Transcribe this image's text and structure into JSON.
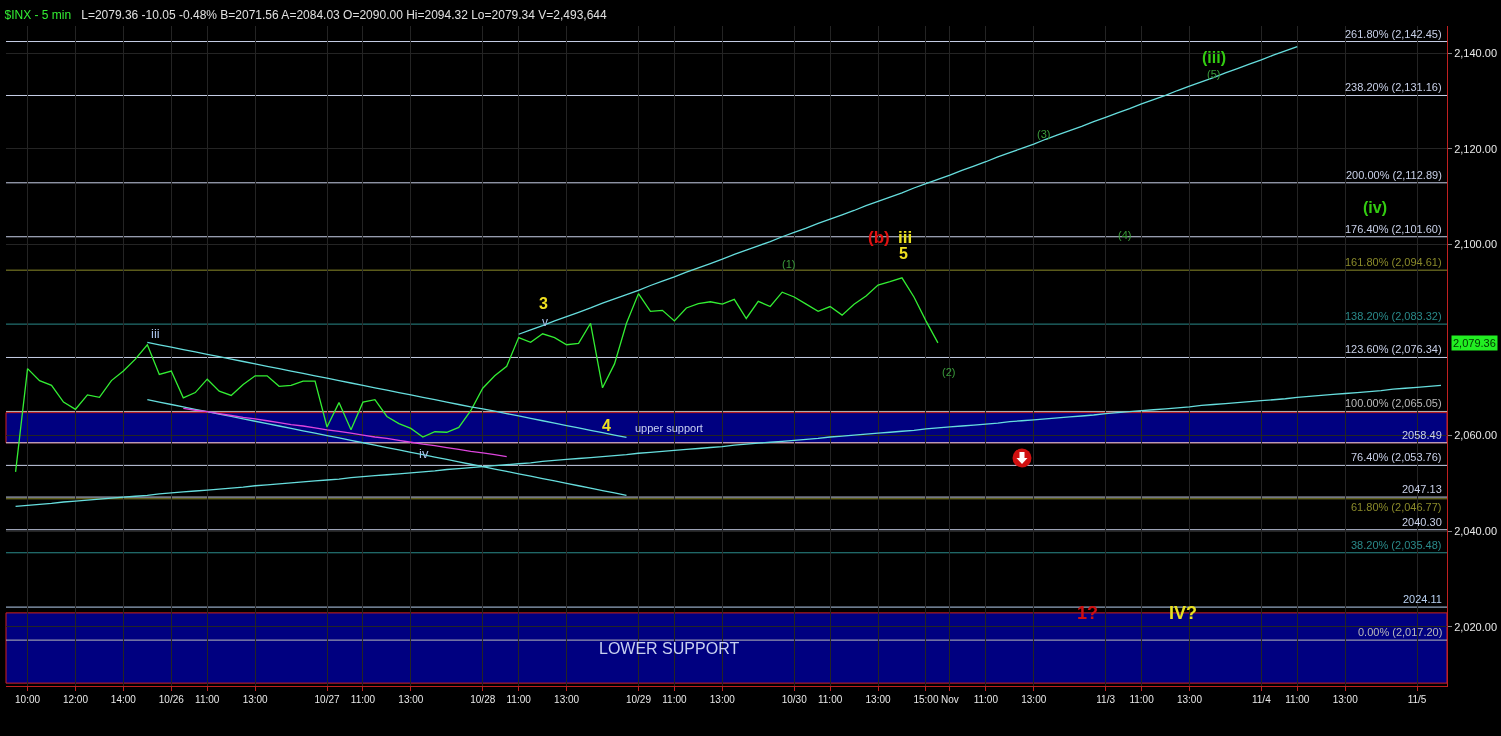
{
  "chart_data": {
    "type": "line",
    "title": "$INX - 5 min",
    "subtitle": "L=2079.36 -10.05 -0.48% B=2071.56 A=2084.03 O=2090.00 Hi=2094.32 Lo=2079.34 V=2,493,644",
    "categories": [
      null,
      "10:00",
      null,
      null,
      null,
      "12:00",
      null,
      null,
      null,
      "14:00",
      null,
      null,
      null,
      "10/26",
      null,
      null,
      "11:00",
      null,
      null,
      null,
      "13:00",
      null,
      null,
      null,
      null,
      null,
      "10/27",
      null,
      null,
      "11:00",
      null,
      null,
      null,
      "13:00",
      null,
      null,
      null,
      null,
      null,
      "10/28",
      null,
      null,
      "11:00",
      null,
      null,
      null,
      "13:00",
      null,
      null,
      null,
      null,
      null,
      "10/29",
      null,
      null,
      "11:00",
      null,
      null,
      null,
      "13:00",
      null,
      null,
      null,
      null,
      null,
      "10/30",
      null,
      null,
      "11:00",
      null,
      null,
      null,
      "13:00",
      null,
      null,
      null,
      "15:00",
      null,
      "Nov",
      null,
      null,
      "11:00",
      null,
      null,
      null,
      "13:00",
      null,
      null,
      null,
      null,
      null,
      "11/3",
      null,
      null,
      "11:00",
      null,
      null,
      null,
      "13:00",
      null,
      null,
      null,
      null,
      null,
      "11/4",
      null,
      null,
      "11:00",
      null,
      null,
      null,
      "13:00",
      null,
      null,
      null,
      null,
      null,
      "11/5",
      null,
      null
    ],
    "ylim": [
      2007.6,
      2145.7
    ],
    "yticks": [
      {
        "value": 2020,
        "label": "2,020.00"
      },
      {
        "value": 2040,
        "label": "2,040.00"
      },
      {
        "value": 2060,
        "label": "2,060.00"
      },
      {
        "value": 2100,
        "label": "2,100.00"
      },
      {
        "value": 2120,
        "label": "2,120.00"
      },
      {
        "value": 2140,
        "label": "2,140.00"
      }
    ],
    "grid": true,
    "marker": "none",
    "line_style": "solid",
    "series": [
      {
        "color": "#33ee33",
        "values": [
          2052.4,
          2074.0,
          2071.5,
          2070.5,
          2067.0,
          2065.5,
          2068.5,
          2068.0,
          2071.5,
          2073.5,
          2076.0,
          2079.0,
          2072.8,
          2073.5,
          2067.9,
          2069.0,
          2071.8,
          2069.3,
          2068.4,
          2070.7,
          2072.5,
          2072.5,
          2070.3,
          2070.5,
          2071.4,
          2071.4,
          2061.8,
          2066.9,
          2061.2,
          2067.0,
          2067.5,
          2064.0,
          2062.5,
          2061.5,
          2059.7,
          2060.8,
          2060.7,
          2061.7,
          2065.2,
          2069.9,
          2072.5,
          2074.5,
          2080.5,
          2079.5,
          2081.3,
          2080.5,
          2079.0,
          2079.3,
          2083.5,
          2070.0,
          2075.0,
          2083.5,
          2089.7,
          2086.0,
          2086.2,
          2084.0,
          2086.7,
          2087.6,
          2088.0,
          2087.5,
          2088.5,
          2084.5,
          2088.1,
          2087.0,
          2090.0,
          2089.0,
          2087.5,
          2086.0,
          2087.0,
          2085.2,
          2087.5,
          2089.2,
          2091.5,
          2092.2,
          2093.0,
          2089.0,
          2084.0,
          2079.4,
          null,
          null,
          null,
          null,
          null,
          null,
          null,
          null,
          null,
          null,
          null,
          null,
          null,
          null,
          null,
          null,
          null,
          null,
          null,
          null,
          null,
          null,
          null,
          null,
          null,
          null,
          null,
          null,
          null,
          null,
          null,
          null,
          null,
          null,
          null,
          null,
          null,
          null,
          null,
          null,
          null,
          null
        ]
      },
      {
        "color": "#66dddd",
        "values": [
          null,
          null,
          null,
          null,
          null,
          null,
          null,
          null,
          null,
          null,
          null,
          2079.5,
          2079.0,
          2078.5,
          2078.0,
          2077.5,
          2077.0,
          2076.5,
          2076.0,
          2075.5,
          2075.0,
          2074.5,
          2074.0,
          2073.5,
          2073.0,
          2072.5,
          2072.0,
          2071.5,
          2071.0,
          2070.5,
          2070.0,
          2069.5,
          2069.0,
          2068.5,
          2068.0,
          2067.5,
          2067.0,
          2066.5,
          2066.0,
          2065.6,
          2065.1,
          2064.6,
          2064.1,
          2063.6,
          2063.1,
          2062.6,
          2062.1,
          2061.6,
          2061.1,
          2060.6,
          2060.1,
          2059.6,
          null,
          null,
          null,
          null,
          null,
          null,
          null,
          null,
          null,
          null,
          null,
          null,
          null,
          null,
          null,
          null,
          null,
          null,
          null,
          null,
          null,
          null,
          null,
          null,
          null,
          null,
          null,
          null,
          null,
          null,
          null,
          null,
          null,
          null,
          null,
          null,
          null,
          null,
          null,
          null,
          null,
          null,
          null,
          null,
          null,
          null,
          null,
          null,
          null,
          null,
          null,
          null,
          null,
          null,
          null,
          null,
          null,
          null,
          null,
          null,
          null,
          null,
          null,
          null,
          null,
          null,
          null,
          null
        ]
      },
      {
        "color": "#66dddd",
        "values": [
          null,
          null,
          null,
          null,
          null,
          null,
          null,
          null,
          null,
          null,
          null,
          2067.5,
          2067.0,
          2066.5,
          2066.0,
          2065.5,
          2065.0,
          2064.5,
          2064.0,
          2063.5,
          2063.0,
          2062.5,
          2062.0,
          2061.5,
          2061.0,
          2060.5,
          2060.0,
          2059.5,
          2059.0,
          2058.5,
          2058.0,
          2057.5,
          2057.0,
          2056.5,
          2056.0,
          2055.5,
          2055.0,
          2054.5,
          2054.0,
          2053.5,
          2053.0,
          2052.5,
          2052.0,
          2051.5,
          2051.0,
          2050.5,
          2050.0,
          2049.5,
          2049.0,
          2048.5,
          2048.0,
          2047.5,
          null,
          null,
          null,
          null,
          null,
          null,
          null,
          null,
          null,
          null,
          null,
          null,
          null,
          null,
          null,
          null,
          null,
          null,
          null,
          null,
          null,
          null,
          null,
          null,
          null,
          null,
          null,
          null,
          null,
          null,
          null,
          null,
          null,
          null,
          null,
          null,
          null,
          null,
          null,
          null,
          null,
          null,
          null,
          null,
          null,
          null,
          null,
          null,
          null,
          null,
          null,
          null,
          null,
          null,
          null,
          null,
          null,
          null,
          null,
          null,
          null,
          null,
          null,
          null,
          null,
          null,
          null,
          null
        ]
      },
      {
        "color": "#dd44dd",
        "values": [
          null,
          null,
          null,
          null,
          null,
          null,
          null,
          null,
          null,
          null,
          null,
          null,
          null,
          null,
          2065.7,
          2065.3,
          2065.0,
          2064.6,
          2064.2,
          2063.8,
          2063.5,
          2063.1,
          2062.7,
          2062.3,
          2062.0,
          2061.6,
          2061.2,
          2060.9,
          2060.5,
          2060.1,
          2059.7,
          2059.4,
          2059.0,
          2058.6,
          2058.2,
          2057.9,
          2057.5,
          2057.1,
          2056.7,
          2056.4,
          2056.0,
          2055.6,
          null,
          null,
          null,
          null,
          null,
          null,
          null,
          null,
          null,
          null,
          null,
          null,
          null,
          null,
          null,
          null,
          null,
          null,
          null,
          null,
          null,
          null,
          null,
          null,
          null,
          null,
          null,
          null,
          null,
          null,
          null,
          null,
          null,
          null,
          null,
          null,
          null,
          null,
          null,
          null,
          null,
          null,
          null,
          null,
          null,
          null,
          null,
          null,
          null,
          null,
          null,
          null,
          null,
          null,
          null,
          null,
          null,
          null,
          null,
          null,
          null,
          null,
          null,
          null,
          null,
          null,
          null,
          null,
          null,
          null,
          null,
          null,
          null,
          null,
          null,
          null,
          null,
          null
        ]
      },
      {
        "color": "#66dddd",
        "values": [
          2045.2,
          2045.4,
          2045.6,
          2045.8,
          2046.1,
          2046.3,
          2046.5,
          2046.7,
          2046.9,
          2047.1,
          2047.3,
          2047.5,
          2047.8,
          2048.0,
          2048.2,
          2048.4,
          2048.6,
          2048.8,
          2049.0,
          2049.2,
          2049.5,
          2049.7,
          2049.9,
          2050.1,
          2050.3,
          2050.5,
          2050.7,
          2050.9,
          2051.2,
          2051.4,
          2051.6,
          2051.8,
          2052.0,
          2052.2,
          2052.4,
          2052.6,
          2052.9,
          2053.1,
          2053.3,
          2053.5,
          2053.7,
          2053.9,
          2054.1,
          2054.3,
          2054.6,
          2054.8,
          2055.0,
          2055.2,
          2055.4,
          2055.6,
          2055.8,
          2056.0,
          2056.3,
          2056.5,
          2056.7,
          2056.9,
          2057.1,
          2057.3,
          2057.5,
          2057.7,
          2058.0,
          2058.2,
          2058.4,
          2058.6,
          2058.8,
          2059.0,
          2059.2,
          2059.4,
          2059.7,
          2059.9,
          2060.1,
          2060.3,
          2060.5,
          2060.7,
          2060.9,
          2061.1,
          2061.4,
          2061.6,
          2061.8,
          2062.0,
          2062.2,
          2062.4,
          2062.6,
          2062.9,
          2063.1,
          2063.3,
          2063.5,
          2063.7,
          2063.9,
          2064.1,
          2064.3,
          2064.6,
          2064.8,
          2065.0,
          2065.2,
          2065.4,
          2065.6,
          2065.8,
          2066.0,
          2066.3,
          2066.5,
          2066.7,
          2066.9,
          2067.1,
          2067.3,
          2067.5,
          2067.7,
          2068.0,
          2068.2,
          2068.4,
          2068.6,
          2068.8,
          2069.0,
          2069.2,
          2069.4,
          2069.7,
          2069.9,
          2070.1,
          2070.3,
          2070.5
        ]
      },
      {
        "color": "#66dddd",
        "values": [
          null,
          null,
          null,
          null,
          null,
          null,
          null,
          null,
          null,
          null,
          null,
          null,
          null,
          null,
          null,
          null,
          null,
          null,
          null,
          null,
          null,
          null,
          null,
          null,
          null,
          null,
          null,
          null,
          null,
          null,
          null,
          null,
          null,
          null,
          null,
          null,
          null,
          null,
          null,
          null,
          null,
          null,
          2081.2,
          2082.1,
          2083.0,
          2084.0,
          2084.9,
          2085.8,
          2086.7,
          2087.7,
          2088.6,
          2089.5,
          2090.4,
          2091.4,
          2092.3,
          2093.2,
          2094.2,
          2095.1,
          2096.0,
          2096.9,
          2097.9,
          2098.8,
          2099.7,
          2100.6,
          2101.6,
          2102.5,
          2103.4,
          2104.4,
          2105.3,
          2106.2,
          2107.1,
          2108.1,
          2109.0,
          2109.9,
          2110.8,
          2111.8,
          2112.7,
          2113.6,
          2114.5,
          2115.5,
          2116.4,
          2117.3,
          2118.3,
          2119.2,
          2120.1,
          2121.0,
          2122.0,
          2122.9,
          2123.8,
          2124.7,
          2125.7,
          2126.6,
          2127.5,
          2128.4,
          2129.4,
          2130.3,
          2131.2,
          2132.2,
          2133.1,
          2134.0,
          2134.9,
          2135.9,
          2136.8,
          2137.7,
          2138.6,
          2139.6,
          2140.5,
          2141.4,
          null,
          null,
          null,
          null,
          null,
          null,
          null,
          null,
          null,
          null,
          null,
          null
        ]
      }
    ],
    "ref_lines": [
      {
        "axis": "y",
        "value": 2142.45,
        "label": "261.80% (2,142.45)",
        "color": "#c8d0e8"
      },
      {
        "axis": "y",
        "value": 2131.16,
        "label": "238.20% (2,131.16)",
        "color": "#c8d0e8"
      },
      {
        "axis": "y",
        "value": 2112.89,
        "label": "200.00% (2,112.89)",
        "color": "#c8d0e8"
      },
      {
        "axis": "y",
        "value": 2101.6,
        "label": "176.40% (2,101.60)",
        "color": "#c8d0e8"
      },
      {
        "axis": "y",
        "value": 2094.61,
        "label": "161.80% (2,094.61)",
        "color": "#8a8a2a"
      },
      {
        "axis": "y",
        "value": 2083.32,
        "label": "138.20% (2,083.32)",
        "color": "#2a8a8a"
      },
      {
        "axis": "y",
        "value": 2076.34,
        "label": "123.60% (2,076.34)",
        "color": "#c8d0e8"
      },
      {
        "axis": "y",
        "value": 2065.05,
        "label": "100.00% (2,065.05)",
        "color": "#b8b8b8"
      },
      {
        "axis": "y",
        "value": 2058.49,
        "label": "2058.49",
        "color": "#c8d0e8"
      },
      {
        "axis": "y",
        "value": 2053.76,
        "label": "76.40% (2,053.76)",
        "color": "#c8d0e8"
      },
      {
        "axis": "y",
        "value": 2047.13,
        "label": "2047.13",
        "color": "#c8d0e8"
      },
      {
        "axis": "y",
        "value": 2046.77,
        "label": "61.80% (2,046.77)",
        "color": "#8a8a2a"
      },
      {
        "axis": "y",
        "value": 2040.3,
        "label": "2040.30",
        "color": "#c8d0e8"
      },
      {
        "axis": "y",
        "value": 2035.48,
        "label": "38.20% (2,035.48)",
        "color": "#2a8a8a"
      },
      {
        "axis": "y",
        "value": 2024.11,
        "label": "2024.11",
        "color": "#b8d0f0"
      },
      {
        "axis": "y",
        "value": 2017.2,
        "label": "0.00% (2,017.20)",
        "color": "#b8b8b8"
      }
    ],
    "bands": [
      {
        "axis": "y",
        "from": 2058.49,
        "to": 2064.8,
        "label": "upper support",
        "color": "#000080"
      },
      {
        "axis": "y",
        "from": 2008.2,
        "to": 2022.9,
        "label": "LOWER SUPPORT",
        "color": "#000080"
      }
    ],
    "annotations": [
      "iii",
      "iv",
      "3",
      "v",
      "4",
      "5",
      "(b)",
      "iii",
      "(1)",
      "(2)",
      "(3)",
      "(4)",
      "(5)",
      "(iii)",
      "(iv)",
      "1?",
      "IV?",
      "2,079.36"
    ]
  }
}
